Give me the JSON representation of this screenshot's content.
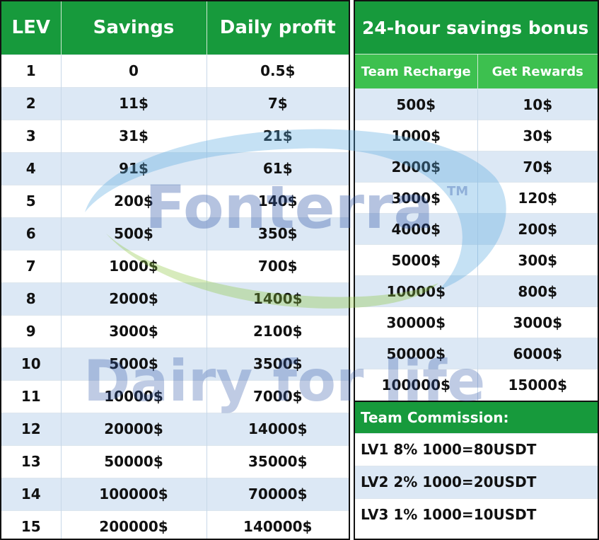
{
  "levels_table": {
    "headers": [
      "LEV",
      "Savings",
      "Daily profit"
    ],
    "rows": [
      [
        "1",
        "0",
        "0.5$"
      ],
      [
        "2",
        "11$",
        "7$"
      ],
      [
        "3",
        "31$",
        "21$"
      ],
      [
        "4",
        "91$",
        "61$"
      ],
      [
        "5",
        "200$",
        "140$"
      ],
      [
        "6",
        "500$",
        "350$"
      ],
      [
        "7",
        "1000$",
        "700$"
      ],
      [
        "8",
        "2000$",
        "1400$"
      ],
      [
        "9",
        "3000$",
        "2100$"
      ],
      [
        "10",
        "5000$",
        "3500$"
      ],
      [
        "11",
        "10000$",
        "7000$"
      ],
      [
        "12",
        "20000$",
        "14000$"
      ],
      [
        "13",
        "50000$",
        "35000$"
      ],
      [
        "14",
        "100000$",
        "70000$"
      ],
      [
        "15",
        "200000$",
        "140000$"
      ]
    ]
  },
  "bonus": {
    "title": "24-hour savings bonus",
    "headers": [
      "Team Recharge",
      "Get Rewards"
    ],
    "rows": [
      [
        "500$",
        "10$"
      ],
      [
        "1000$",
        "30$"
      ],
      [
        "2000$",
        "70$"
      ],
      [
        "3000$",
        "120$"
      ],
      [
        "4000$",
        "200$"
      ],
      [
        "5000$",
        "300$"
      ],
      [
        "10000$",
        "800$"
      ],
      [
        "30000$",
        "3000$"
      ],
      [
        "50000$",
        "6000$"
      ],
      [
        "100000$",
        "15000$"
      ]
    ]
  },
  "commission": {
    "title": "Team Commission:",
    "rows": [
      "LV1 8% 1000=80USDT",
      "LV2 2% 1000=20USDT",
      "LV3 1% 1000=10USDT"
    ]
  },
  "watermark": {
    "brand": "Fonterra",
    "trademark": "TM",
    "tagline": "Dairy for life"
  },
  "colors": {
    "header_green": "#179a3c",
    "subheader_green": "#3dc04f",
    "row_alt_blue": "#dce8f5"
  }
}
